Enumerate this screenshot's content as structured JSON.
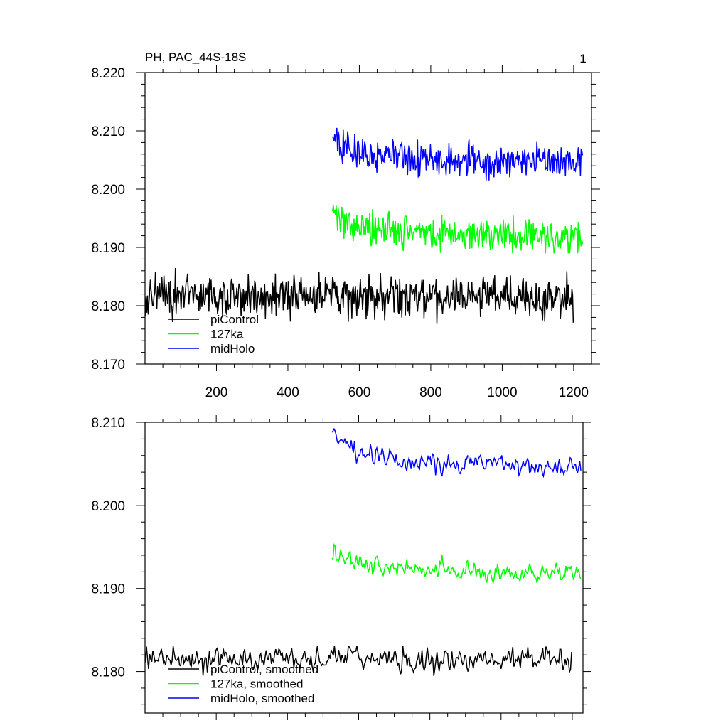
{
  "figure": {
    "title": "PH, PAC_44S-18S",
    "panel_number": "1"
  },
  "chart_data": [
    {
      "type": "line",
      "title": "PH, PAC_44S-18S",
      "xlabel": "",
      "ylabel": "",
      "xlim": [
        0,
        1250
      ],
      "ylim": [
        8.17,
        8.22
      ],
      "x_ticks": [
        200,
        400,
        600,
        800,
        1000,
        1200
      ],
      "y_ticks": [
        8.17,
        8.18,
        8.19,
        8.2,
        8.21,
        8.22
      ],
      "y_tick_labels": [
        "8.170",
        "8.180",
        "8.190",
        "8.200",
        "8.210",
        "8.220"
      ],
      "grid": false,
      "legend_position": "bottom-left",
      "series": [
        {
          "name": "piControl",
          "color": "#000000",
          "x_start": 1,
          "x_end": 1200,
          "approx_mean": 8.1815,
          "approx_range": [
            8.176,
            8.187
          ]
        },
        {
          "name": "127ka",
          "color": "#00ff00",
          "x_start": 525,
          "x_end": 1225,
          "approx_mean": 8.1925,
          "approx_range": [
            8.189,
            8.198
          ]
        },
        {
          "name": "midHolo",
          "color": "#0000ff",
          "x_start": 525,
          "x_end": 1225,
          "approx_mean": 8.2055,
          "approx_range": [
            8.2015,
            8.2105
          ]
        }
      ]
    },
    {
      "type": "line",
      "title": "",
      "xlabel": "",
      "ylabel": "",
      "xlim": [
        0,
        1250
      ],
      "ylim": [
        8.175,
        8.21
      ],
      "x_ticks": [
        200,
        400,
        600,
        800,
        1000,
        1200
      ],
      "y_ticks": [
        8.18,
        8.19,
        8.2,
        8.21
      ],
      "y_tick_labels": [
        "8.180",
        "8.190",
        "8.200",
        "8.210"
      ],
      "grid": false,
      "legend_position": "bottom-left",
      "series": [
        {
          "name": "piControl, smoothed",
          "color": "#000000",
          "x_start": 1,
          "x_end": 1200,
          "approx_mean": 8.1815,
          "approx_range": [
            8.179,
            8.1858
          ]
        },
        {
          "name": "127ka, smoothed",
          "color": "#00ff00",
          "x_start": 525,
          "x_end": 1225,
          "approx_mean": 8.1925,
          "approx_range": [
            8.19,
            8.1955
          ]
        },
        {
          "name": "midHolo, smoothed",
          "color": "#0000ff",
          "x_start": 525,
          "x_end": 1225,
          "approx_mean": 8.2055,
          "approx_range": [
            8.2035,
            8.2098
          ]
        }
      ]
    }
  ]
}
